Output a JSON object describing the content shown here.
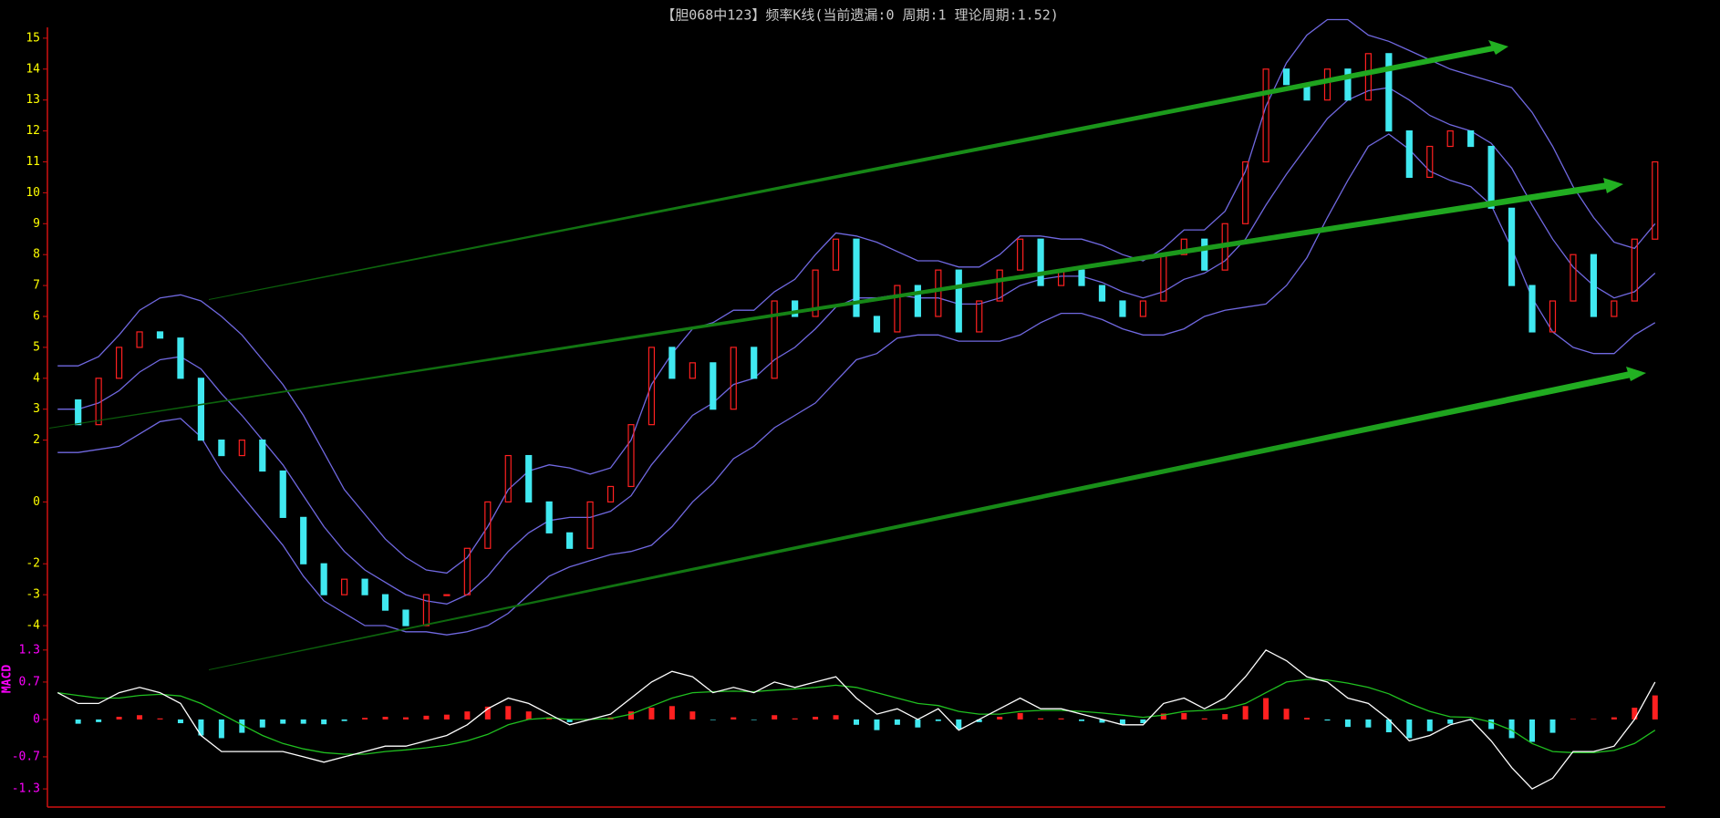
{
  "chart_data": [
    {
      "type": "candlestick",
      "title": "【胆068中123】频率K线(当前遗漏:0 周期:1 理论周期:1.52)",
      "up_color": "#ff2020",
      "down_color": "#40e8f0",
      "tick_color": "#ffff00",
      "axis_color": "#d01010",
      "ylim": [
        -4.53,
        15.35
      ],
      "yticks": [
        15,
        14,
        13,
        12,
        11,
        10,
        9,
        8,
        7,
        6,
        5,
        4,
        3,
        2,
        0,
        -2,
        -3,
        -4
      ],
      "values": [
        3.3,
        2.5,
        4,
        5,
        5.5,
        5.3,
        4,
        2,
        1.5,
        2,
        1,
        -0.5,
        -2,
        -3,
        -2.5,
        -3,
        -3.5,
        -4,
        -3,
        -3,
        -1.5,
        0,
        1.5,
        0,
        -1,
        -1.5,
        0,
        0.5,
        2.5,
        5,
        4,
        4.5,
        3,
        5,
        4,
        6.5,
        6,
        7.5,
        8.5,
        6,
        5.5,
        7,
        6,
        7.5,
        5.5,
        6.5,
        7.5,
        8.5,
        7,
        7.5,
        7,
        6.5,
        6,
        6.5,
        8,
        8.5,
        7.5,
        9,
        11,
        14,
        13.5,
        13,
        14,
        13,
        14.5,
        12,
        10.5,
        11.5,
        12,
        11.5,
        9.5,
        7,
        5.5,
        6.5,
        8,
        6,
        6.5,
        8.5,
        11
      ],
      "bands": [
        {
          "color": "#7068e0",
          "values": [
            4.4,
            4.4,
            4.7,
            5.4,
            6.2,
            6.6,
            6.7,
            6.5,
            6,
            5.4,
            4.6,
            3.8,
            2.8,
            1.6,
            0.4,
            -0.4,
            -1.2,
            -1.8,
            -2.2,
            -2.3,
            -1.8,
            -0.8,
            0.4,
            1,
            1.2,
            1.1,
            0.9,
            1.1,
            2,
            3.8,
            4.8,
            5.6,
            5.8,
            6.2,
            6.2,
            6.8,
            7.2,
            8,
            8.7,
            8.6,
            8.4,
            8.1,
            7.8,
            7.8,
            7.6,
            7.6,
            8,
            8.6,
            8.6,
            8.5,
            8.5,
            8.3,
            8,
            7.8,
            8.2,
            8.8,
            8.8,
            9.4,
            10.7,
            12.8,
            14.2,
            15.1,
            15.6,
            15.6,
            15.1,
            14.9,
            14.6,
            14.3,
            14,
            13.8,
            13.6,
            13.4,
            12.6,
            11.5,
            10.2,
            9.2,
            8.4,
            8.2,
            9
          ]
        },
        {
          "color": "#7068e0",
          "values": [
            3,
            3,
            3.2,
            3.6,
            4.2,
            4.6,
            4.7,
            4.3,
            3.5,
            2.8,
            2,
            1.2,
            0.2,
            -0.8,
            -1.6,
            -2.2,
            -2.6,
            -3,
            -3.2,
            -3.3,
            -3,
            -2.4,
            -1.6,
            -1,
            -0.6,
            -0.5,
            -0.5,
            -0.3,
            0.2,
            1.2,
            2,
            2.8,
            3.2,
            3.8,
            4,
            4.6,
            5,
            5.6,
            6.3,
            6.6,
            6.6,
            6.7,
            6.6,
            6.6,
            6.4,
            6.4,
            6.6,
            7,
            7.2,
            7.3,
            7.3,
            7.1,
            6.8,
            6.6,
            6.8,
            7.2,
            7.4,
            7.8,
            8.5,
            9.6,
            10.6,
            11.5,
            12.4,
            13,
            13.3,
            13.4,
            13,
            12.5,
            12.2,
            12,
            11.6,
            10.8,
            9.6,
            8.5,
            7.6,
            7,
            6.6,
            6.8,
            7.4
          ]
        },
        {
          "color": "#7068e0",
          "values": [
            1.6,
            1.6,
            1.7,
            1.8,
            2.2,
            2.6,
            2.7,
            2.1,
            1,
            0.2,
            -0.6,
            -1.4,
            -2.4,
            -3.2,
            -3.6,
            -4,
            -4,
            -4.2,
            -4.2,
            -4.3,
            -4.2,
            -4,
            -3.6,
            -3,
            -2.4,
            -2.1,
            -1.9,
            -1.7,
            -1.6,
            -1.4,
            -0.8,
            0,
            0.6,
            1.4,
            1.8,
            2.4,
            2.8,
            3.2,
            3.9,
            4.6,
            4.8,
            5.3,
            5.4,
            5.4,
            5.2,
            5.2,
            5.2,
            5.4,
            5.8,
            6.1,
            6.1,
            5.9,
            5.6,
            5.4,
            5.4,
            5.6,
            6,
            6.2,
            6.3,
            6.4,
            7,
            7.9,
            9.2,
            10.4,
            11.5,
            11.9,
            11.4,
            10.7,
            10.4,
            10.2,
            9.6,
            8.2,
            6.6,
            5.5,
            5,
            4.8,
            4.8,
            5.4,
            5.8
          ]
        }
      ]
    },
    {
      "type": "macd",
      "label": "MACD",
      "tick_color": "#ff00ff",
      "axis_color": "#d01010",
      "ylim": [
        -1.64,
        1.45
      ],
      "yticks": [
        1.3,
        0.7,
        0,
        -0.7,
        -1.3
      ],
      "dif_color": "#ffffff",
      "dea_color": "#20c020",
      "up_color": "#ff2020",
      "down_color": "#40e8f0",
      "dif": [
        0.5,
        0.3,
        0.3,
        0.5,
        0.6,
        0.5,
        0.3,
        -0.3,
        -0.6,
        -0.6,
        -0.6,
        -0.6,
        -0.7,
        -0.8,
        -0.7,
        -0.6,
        -0.5,
        -0.5,
        -0.4,
        -0.3,
        -0.1,
        0.2,
        0.4,
        0.3,
        0.1,
        -0.1,
        0,
        0.1,
        0.4,
        0.7,
        0.9,
        0.8,
        0.5,
        0.6,
        0.5,
        0.7,
        0.6,
        0.7,
        0.8,
        0.4,
        0.1,
        0.2,
        0,
        0.2,
        -0.2,
        0,
        0.2,
        0.4,
        0.2,
        0.2,
        0.1,
        0,
        -0.1,
        -0.1,
        0.3,
        0.4,
        0.2,
        0.4,
        0.8,
        1.3,
        1.1,
        0.8,
        0.7,
        0.4,
        0.3,
        0,
        -0.4,
        -0.3,
        -0.1,
        0,
        -0.4,
        -0.9,
        -1.3,
        -1.1,
        -0.6,
        -0.6,
        -0.5,
        0,
        0.7
      ],
      "dea": [
        0.5,
        0.45,
        0.4,
        0.4,
        0.45,
        0.47,
        0.44,
        0.3,
        0.1,
        -0.1,
        -0.3,
        -0.45,
        -0.55,
        -0.62,
        -0.65,
        -0.65,
        -0.6,
        -0.57,
        -0.53,
        -0.48,
        -0.4,
        -0.28,
        -0.1,
        0,
        0.03,
        0,
        0,
        0.02,
        0.1,
        0.25,
        0.4,
        0.5,
        0.52,
        0.53,
        0.52,
        0.55,
        0.57,
        0.6,
        0.64,
        0.6,
        0.5,
        0.4,
        0.3,
        0.26,
        0.15,
        0.1,
        0.1,
        0.15,
        0.17,
        0.17,
        0.15,
        0.12,
        0.08,
        0.04,
        0.08,
        0.15,
        0.17,
        0.2,
        0.3,
        0.5,
        0.7,
        0.75,
        0.74,
        0.68,
        0.6,
        0.48,
        0.3,
        0.15,
        0.05,
        0.04,
        -0.05,
        -0.2,
        -0.45,
        -0.6,
        -0.62,
        -0.62,
        -0.58,
        -0.45,
        -0.2
      ],
      "hist": [
        0,
        -0.08,
        -0.05,
        0.05,
        0.08,
        0.02,
        -0.07,
        -0.3,
        -0.35,
        -0.25,
        -0.15,
        -0.08,
        -0.08,
        -0.09,
        -0.03,
        0.03,
        0.05,
        0.04,
        0.07,
        0.09,
        0.15,
        0.24,
        0.25,
        0.15,
        0.04,
        -0.05,
        0,
        0.04,
        0.15,
        0.22,
        0.25,
        0.15,
        -0.01,
        0.04,
        -0.01,
        0.08,
        0.02,
        0.05,
        0.08,
        -0.1,
        -0.2,
        -0.1,
        -0.15,
        -0.03,
        -0.18,
        -0.05,
        0.05,
        0.12,
        0.02,
        0.02,
        -0.03,
        -0.06,
        -0.09,
        -0.07,
        0.11,
        0.12,
        0.02,
        0.1,
        0.25,
        0.4,
        0.2,
        0.03,
        -0.02,
        -0.14,
        -0.15,
        -0.24,
        -0.35,
        -0.22,
        -0.08,
        -0.02,
        -0.18,
        -0.35,
        -0.42,
        -0.25,
        0.01,
        0.01,
        0.04,
        0.22,
        0.45
      ]
    }
  ]
}
